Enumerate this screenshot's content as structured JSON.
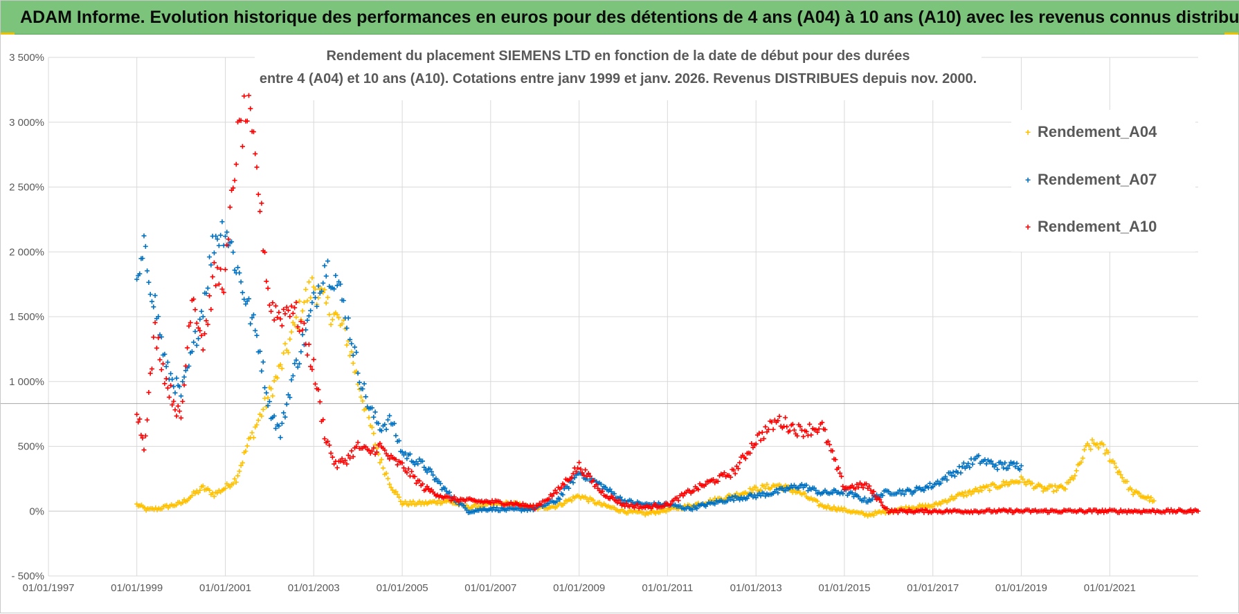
{
  "header": {
    "title": "ADAM Informe. Evolution historique des performances en euros pour des détentions de 4 ans (A04) à 10 ans (A10) avec les revenus connus distribués"
  },
  "chart_data": {
    "type": "scatter",
    "title_line1": "Rendement du placement SIEMENS LTD en fonction de la date de début pour des durées",
    "title_line2": "entre 4 (A04) et 10 ans (A10).  Cotations entre janv 1999 et janv. 2026. Revenus DISTRIBUES depuis nov. 2000.",
    "xlabel": "",
    "ylabel": "",
    "x_ticks": [
      "01/01/1997",
      "01/01/1999",
      "01/01/2001",
      "01/01/2003",
      "01/01/2005",
      "01/01/2007",
      "01/01/2009",
      "01/01/2011",
      "01/01/2013",
      "01/01/2015",
      "01/01/2017",
      "01/01/2019",
      "01/01/2021"
    ],
    "x_range": [
      "1997-01-01",
      "2023-01-01"
    ],
    "y_ticks": [
      "- 500%",
      "0%",
      "500%",
      "1 000%",
      "1 500%",
      "2 000%",
      "2 500%",
      "3 000%",
      "3 500%"
    ],
    "ylim": [
      -500,
      3500
    ],
    "grid": true,
    "legend_position": "right",
    "reference_line_y": 830,
    "colors": {
      "Rendement_A04": "#ffc000",
      "Rendement_A07": "#0070c0",
      "Rendement_A10": "#ff0000",
      "grid": "#d9d9d9",
      "banner": "#7cc47c"
    },
    "series": [
      {
        "name": "Rendement_A04",
        "x": [
          "1999-01-01",
          "1999-04-01",
          "1999-07-01",
          "1999-10-01",
          "2000-01-01",
          "2000-04-01",
          "2000-07-01",
          "2000-10-01",
          "2001-01-01",
          "2001-04-01",
          "2001-07-01",
          "2001-10-01",
          "2002-01-01",
          "2002-04-01",
          "2002-07-01",
          "2002-10-01",
          "2003-01-01",
          "2003-04-01",
          "2003-07-01",
          "2003-10-01",
          "2004-01-01",
          "2004-04-01",
          "2004-07-01",
          "2004-10-01",
          "2005-01-01",
          "2005-07-01",
          "2006-01-01",
          "2006-07-01",
          "2007-01-01",
          "2007-07-01",
          "2008-01-01",
          "2008-07-01",
          "2009-01-01",
          "2009-07-01",
          "2010-01-01",
          "2010-07-01",
          "2011-01-01",
          "2011-07-01",
          "2012-01-01",
          "2012-07-01",
          "2013-01-01",
          "2013-07-01",
          "2014-01-01",
          "2014-07-01",
          "2015-01-01",
          "2015-07-01",
          "2016-01-01",
          "2016-07-01",
          "2017-01-01",
          "2017-07-01",
          "2018-01-01",
          "2018-07-01",
          "2019-01-01",
          "2019-07-01",
          "2020-01-01",
          "2020-04-01",
          "2020-07-01",
          "2020-10-01",
          "2021-01-01",
          "2021-07-01",
          "2022-01-01"
        ],
        "values": [
          50,
          10,
          20,
          40,
          60,
          120,
          180,
          130,
          180,
          250,
          500,
          700,
          900,
          1100,
          1350,
          1600,
          1750,
          1600,
          1500,
          1350,
          1000,
          700,
          400,
          200,
          60,
          60,
          80,
          30,
          50,
          60,
          20,
          40,
          120,
          50,
          0,
          -20,
          10,
          40,
          80,
          120,
          170,
          200,
          140,
          40,
          10,
          -30,
          0,
          30,
          40,
          110,
          160,
          200,
          240,
          170,
          180,
          300,
          500,
          520,
          420,
          150,
          80
        ]
      },
      {
        "name": "Rendement_A07",
        "x": [
          "1999-01-01",
          "1999-03-01",
          "1999-06-01",
          "1999-09-01",
          "2000-01-01",
          "2000-04-01",
          "2000-07-01",
          "2000-10-01",
          "2001-01-01",
          "2001-04-01",
          "2001-07-01",
          "2001-10-01",
          "2002-01-01",
          "2002-04-01",
          "2002-07-01",
          "2002-10-01",
          "2003-01-01",
          "2003-04-01",
          "2003-07-01",
          "2003-10-01",
          "2004-01-01",
          "2004-04-01",
          "2004-07-01",
          "2004-10-01",
          "2005-01-01",
          "2005-07-01",
          "2006-01-01",
          "2006-07-01",
          "2007-01-01",
          "2007-07-01",
          "2008-01-01",
          "2008-07-01",
          "2009-01-01",
          "2009-07-01",
          "2010-01-01",
          "2010-07-01",
          "2011-01-01",
          "2011-07-01",
          "2012-01-01",
          "2012-07-01",
          "2013-01-01",
          "2013-07-01",
          "2014-01-01",
          "2014-07-01",
          "2015-01-01",
          "2015-07-01",
          "2016-01-01",
          "2016-07-01",
          "2017-01-01",
          "2017-07-01",
          "2018-01-01",
          "2018-07-01",
          "2019-01-01"
        ],
        "values": [
          1700,
          2000,
          1600,
          1100,
          900,
          1200,
          1600,
          2100,
          2200,
          1900,
          1600,
          1300,
          800,
          600,
          1000,
          1300,
          1600,
          1900,
          1800,
          1500,
          1100,
          800,
          650,
          700,
          450,
          350,
          150,
          0,
          20,
          10,
          20,
          80,
          300,
          200,
          80,
          50,
          50,
          20,
          60,
          100,
          120,
          150,
          200,
          140,
          150,
          80,
          150,
          150,
          200,
          300,
          400,
          350,
          350
        ]
      },
      {
        "name": "Rendement_A10",
        "x": [
          "1999-01-01",
          "1999-03-01",
          "1999-06-01",
          "1999-09-01",
          "2000-01-01",
          "2000-04-01",
          "2000-07-01",
          "2000-10-01",
          "2001-01-01",
          "2001-04-01",
          "2001-07-01",
          "2001-10-01",
          "2002-01-01",
          "2002-04-01",
          "2002-07-01",
          "2002-10-01",
          "2003-01-01",
          "2003-04-01",
          "2003-07-01",
          "2003-10-01",
          "2004-01-01",
          "2004-04-01",
          "2004-07-01",
          "2004-10-01",
          "2005-01-01",
          "2005-07-01",
          "2006-01-01",
          "2006-07-01",
          "2007-01-01",
          "2007-07-01",
          "2008-01-01",
          "2008-07-01",
          "2009-01-01",
          "2009-07-01",
          "2010-01-01",
          "2010-07-01",
          "2011-01-01",
          "2011-07-01",
          "2012-01-01",
          "2012-07-01",
          "2013-01-01",
          "2013-07-01",
          "2014-01-01",
          "2014-07-01",
          "2015-01-01",
          "2015-07-01",
          "2016-01-01",
          "2016-07-01",
          "2017-01-01",
          "2017-07-01",
          "2018-01-01",
          "2018-07-01",
          "2019-01-01",
          "2019-07-01",
          "2020-01-01",
          "2020-07-01",
          "2021-01-01",
          "2021-07-01",
          "2022-01-01",
          "2022-07-01",
          "2023-01-01"
        ],
        "values": [
          800,
          500,
          1400,
          1000,
          700,
          1700,
          1300,
          1800,
          1800,
          2800,
          3100,
          2500,
          1600,
          1500,
          1600,
          1400,
          1100,
          600,
          350,
          400,
          500,
          450,
          500,
          400,
          350,
          180,
          100,
          80,
          70,
          60,
          30,
          150,
          350,
          150,
          50,
          30,
          50,
          150,
          230,
          300,
          550,
          700,
          620,
          650,
          180,
          200,
          0,
          0,
          0,
          0,
          0,
          0,
          0,
          0,
          0,
          0,
          0,
          0,
          0,
          0,
          0
        ]
      }
    ]
  }
}
